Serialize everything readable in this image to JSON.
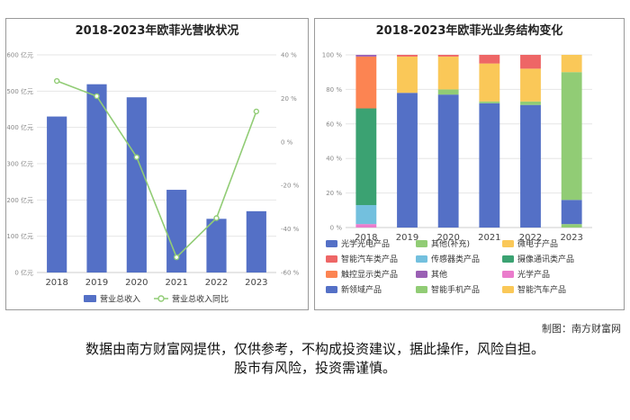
{
  "colors": {
    "bar_blue": "#5470c6",
    "line_green": "#91cc75",
    "grid": "#e6e6e6"
  },
  "chart_data": [
    {
      "type": "bar",
      "title": "2018-2023年欧菲光营收状况",
      "categories": [
        "2018",
        "2019",
        "2020",
        "2021",
        "2022",
        "2023"
      ],
      "y_left_ticks": [
        "0 亿元",
        "100 亿元",
        "200 亿元",
        "300 亿元",
        "400 亿元",
        "500 亿元",
        "600 亿元"
      ],
      "y_right_ticks": [
        "-60 %",
        "-40 %",
        "-20 %",
        "0 %",
        "20 %",
        "40 %"
      ],
      "ylim_left": [
        0,
        600
      ],
      "ylim_right": [
        -60,
        40
      ],
      "series": [
        {
          "name": "营业总收入",
          "type": "bar",
          "axis": "left",
          "values": [
            430,
            519,
            483,
            228,
            148,
            169
          ]
        },
        {
          "name": "营业总收入同比",
          "type": "line",
          "axis": "right",
          "values": [
            28,
            21,
            -7,
            -53,
            -35,
            14
          ]
        }
      ]
    },
    {
      "type": "bar",
      "stacked": true,
      "title": "2018-2023年欧菲光业务结构变化",
      "categories": [
        "2018",
        "2019",
        "2020",
        "2021",
        "2022",
        "2023"
      ],
      "y_ticks": [
        "0 %",
        "20 %",
        "40 %",
        "60 %",
        "80 %",
        "100 %"
      ],
      "ylim": [
        0,
        100
      ],
      "series": [
        {
          "name": "光学光电产品",
          "color": "#5470c6",
          "values": [
            0,
            78,
            77,
            72,
            71,
            0
          ]
        },
        {
          "name": "其他(补充)",
          "color": "#91cc75",
          "values": [
            0,
            0,
            3,
            1,
            2,
            0
          ]
        },
        {
          "name": "微电子产品",
          "color": "#fac858",
          "values": [
            0,
            21,
            19,
            22,
            19,
            0
          ]
        },
        {
          "name": "智能汽车类产品",
          "color": "#ee6666",
          "values": [
            0,
            1,
            1,
            5,
            8,
            0
          ]
        },
        {
          "name": "传感器类产品",
          "color": "#73c0de",
          "values": [
            11,
            0,
            0,
            0,
            0,
            0
          ]
        },
        {
          "name": "摄像通讯类产品",
          "color": "#3ba272",
          "values": [
            56,
            0,
            0,
            0,
            0,
            0
          ]
        },
        {
          "name": "触控显示类产品",
          "color": "#fc8452",
          "values": [
            30,
            0,
            0,
            0,
            0,
            0
          ]
        },
        {
          "name": "其他",
          "color": "#9a60b4",
          "values": [
            1,
            0,
            0,
            0,
            0,
            0
          ]
        },
        {
          "name": "光学产品",
          "color": "#ea7ccc",
          "values": [
            2,
            0,
            0,
            0,
            0,
            0
          ]
        },
        {
          "name": "新领域产品",
          "color": "#5470c6",
          "values": [
            0,
            0,
            0,
            0,
            0,
            14
          ]
        },
        {
          "name": "智能手机产品",
          "color": "#91cc75",
          "values": [
            0,
            0,
            0,
            0,
            0,
            74
          ]
        },
        {
          "name": "智能汽车产品",
          "color": "#fac858",
          "values": [
            0,
            0,
            0,
            0,
            0,
            10
          ]
        }
      ],
      "bottom_segments": [
        0,
        0,
        0,
        0,
        0,
        2
      ],
      "bottom_segment_color": "#91cc75"
    }
  ],
  "credit": "制图：南方财富网",
  "disclaimer": {
    "line1": "数据由南方财富网提供，仅供参考，不构成投资建议，据此操作，风险自担。",
    "line2": "股市有风险，投资需谨慎。"
  }
}
